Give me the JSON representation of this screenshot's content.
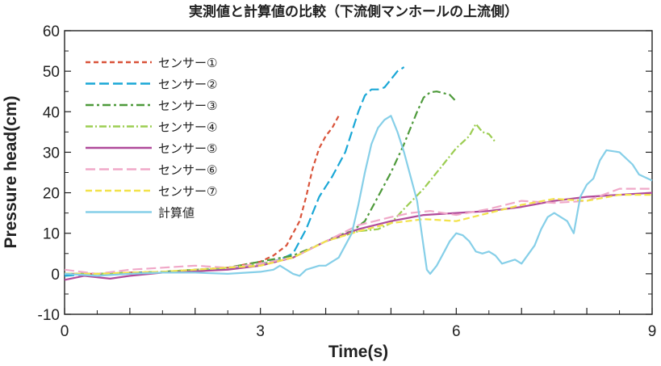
{
  "chart_data": {
    "type": "line",
    "title": "実測値と計算値の比較（下流側マンホールの上流側）",
    "xlabel": "Time(s)",
    "ylabel": "Pressure head(cm)",
    "xlim": [
      0,
      9
    ],
    "ylim": [
      -10,
      60
    ],
    "xticks": [
      0,
      3,
      6,
      9
    ],
    "yticks": [
      -10,
      0,
      10,
      20,
      30,
      40,
      50,
      60
    ],
    "grid": false,
    "legend_position": "top-left",
    "series": [
      {
        "name": "センサー①",
        "color": "#d9533a",
        "dash": "6,4",
        "x": [
          0,
          0.5,
          1,
          1.5,
          2,
          2.5,
          3,
          3.2,
          3.4,
          3.6,
          3.7,
          3.8,
          3.9,
          4.0,
          4.1,
          4.2
        ],
        "y": [
          0,
          0,
          0.3,
          0.5,
          1,
          1.5,
          3,
          4.5,
          7,
          13,
          19,
          26,
          31,
          34,
          36,
          39
        ]
      },
      {
        "name": "センサー②",
        "color": "#1aa7d6",
        "dash": "12,5",
        "x": [
          0,
          0.5,
          1,
          1.5,
          2,
          2.5,
          3,
          3.3,
          3.5,
          3.7,
          3.9,
          4.1,
          4.3,
          4.5,
          4.6,
          4.7,
          4.8,
          4.9,
          5.0,
          5.1,
          5.2
        ],
        "y": [
          -0.5,
          0,
          0.2,
          0.4,
          0.8,
          1.2,
          2.5,
          3.5,
          5,
          11,
          19,
          24,
          30,
          40,
          44,
          45.5,
          45.5,
          46,
          48,
          50,
          51
        ]
      },
      {
        "name": "センサー③",
        "color": "#4e9a3b",
        "dash": "10,4,3,4",
        "x": [
          0,
          0.5,
          1,
          1.5,
          2,
          2.5,
          3,
          3.5,
          3.8,
          4.0,
          4.2,
          4.4,
          4.6,
          4.8,
          5.0,
          5.2,
          5.4,
          5.5,
          5.6,
          5.7,
          5.8,
          5.9,
          6.0
        ],
        "y": [
          0,
          0,
          0.3,
          0.5,
          1,
          1.5,
          3,
          4.5,
          6.5,
          8,
          9.5,
          10.5,
          13,
          19,
          25,
          32,
          40,
          43.5,
          44.8,
          45,
          44.6,
          44.2,
          42.5
        ]
      },
      {
        "name": "センサー④",
        "color": "#9ccd52",
        "dash": "9,3,2,3",
        "x": [
          0,
          0.5,
          1,
          1.5,
          2,
          2.5,
          3,
          3.5,
          4,
          4.5,
          4.8,
          5.0,
          5.2,
          5.5,
          5.8,
          6.0,
          6.2,
          6.3,
          6.4,
          6.5,
          6.6
        ],
        "y": [
          0,
          0,
          0.2,
          0.5,
          1,
          1.5,
          2.5,
          4,
          8,
          10.5,
          11,
          12.5,
          16,
          21,
          27,
          31,
          34,
          37,
          35,
          34.5,
          32.5
        ]
      },
      {
        "name": "センサー⑤",
        "color": "#b04a9a",
        "dash": "",
        "x": [
          0,
          0.3,
          0.7,
          1,
          1.5,
          2,
          2.5,
          3,
          3.5,
          4,
          4.5,
          5,
          5.5,
          6,
          6.5,
          7,
          7.5,
          8,
          8.5,
          9
        ],
        "y": [
          -1.5,
          -0.5,
          -1.2,
          -0.5,
          0.3,
          0.6,
          1,
          2,
          4,
          8,
          11,
          13,
          14.5,
          15,
          15.5,
          16.5,
          18,
          19,
          19.5,
          20
        ]
      },
      {
        "name": "センサー⑥",
        "color": "#f0a8c8",
        "dash": "12,5",
        "x": [
          0,
          0.5,
          1,
          1.5,
          2,
          2.5,
          3,
          3.5,
          4,
          4.5,
          5,
          5.3,
          5.6,
          6,
          6.5,
          7,
          7.5,
          8,
          8.5,
          9
        ],
        "y": [
          1,
          0,
          1,
          1.5,
          2,
          1.5,
          2.5,
          4,
          8,
          12,
          14,
          15,
          15.5,
          14.5,
          16,
          18,
          17.5,
          18,
          21,
          21
        ]
      },
      {
        "name": "センサー⑦",
        "color": "#f2e24a",
        "dash": "8,4",
        "x": [
          0,
          0.5,
          1,
          1.5,
          2,
          2.5,
          3,
          3.5,
          4,
          4.5,
          5,
          5.5,
          6,
          6.5,
          7,
          7.5,
          8,
          8.5,
          9
        ],
        "y": [
          0,
          0,
          0.3,
          0.5,
          1,
          1.5,
          2,
          4,
          8,
          10.5,
          12.5,
          13.5,
          13,
          15,
          17,
          18.5,
          18,
          19.5,
          19.5
        ]
      },
      {
        "name": "計算値",
        "color": "#86cfe8",
        "dash": "",
        "x": [
          0,
          0.5,
          1,
          1.5,
          2,
          2.5,
          3,
          3.2,
          3.3,
          3.4,
          3.5,
          3.6,
          3.7,
          3.8,
          3.9,
          4.0,
          4.2,
          4.4,
          4.5,
          4.6,
          4.7,
          4.8,
          4.9,
          5.0,
          5.1,
          5.2,
          5.4,
          5.55,
          5.6,
          5.7,
          5.8,
          5.9,
          6.0,
          6.1,
          6.2,
          6.3,
          6.4,
          6.5,
          6.6,
          6.7,
          6.8,
          6.9,
          7.0,
          7.2,
          7.3,
          7.4,
          7.5,
          7.7,
          7.8,
          7.9,
          8.0,
          8.1,
          8.2,
          8.3,
          8.5,
          8.7,
          8.8,
          9.0
        ],
        "y": [
          0,
          -0.5,
          0,
          0.3,
          0.3,
          0,
          0.5,
          1,
          2,
          1,
          0,
          -0.5,
          1,
          1.5,
          2,
          2,
          4,
          10,
          17,
          25,
          32,
          36,
          38,
          39,
          35,
          30,
          18,
          1,
          0,
          2,
          5,
          8,
          10,
          9.5,
          8,
          5.5,
          5,
          5.5,
          4.5,
          2.5,
          3,
          3.5,
          2.5,
          7,
          11,
          14,
          15,
          13,
          10,
          19,
          22,
          23.5,
          28,
          30.5,
          30,
          27,
          24.5,
          23
        ]
      }
    ]
  }
}
